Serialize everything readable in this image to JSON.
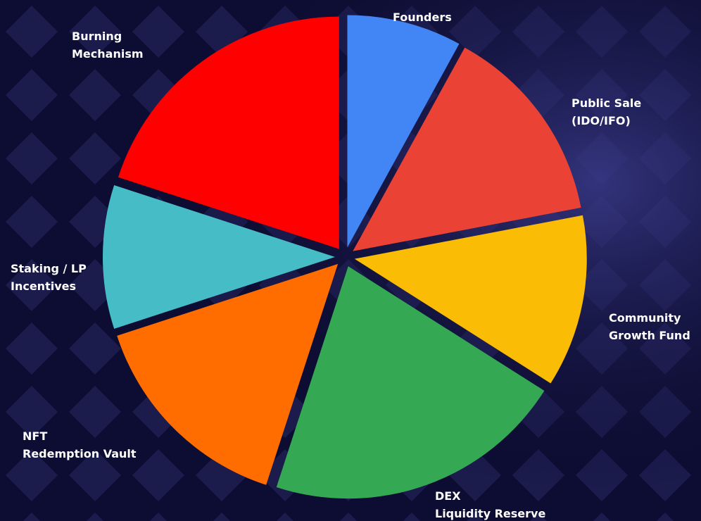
{
  "chart_data": {
    "type": "pie",
    "categories": [
      "Founders",
      "Public Sale\n(IDO/IFO)",
      "Community\nGrowth Fund",
      "DEX\nLiquidity Reserve",
      "NFT\nRedemption Vault",
      "Staking / LP\nIncentives",
      "Burning\nMechanism"
    ],
    "values": [
      8,
      14,
      12,
      21,
      15,
      10,
      20
    ],
    "colors": [
      "#4285f4",
      "#ea4335",
      "#fbbc05",
      "#34a853",
      "#ff6d01",
      "#46bdc6",
      "#ff0000"
    ],
    "exploded": true
  }
}
